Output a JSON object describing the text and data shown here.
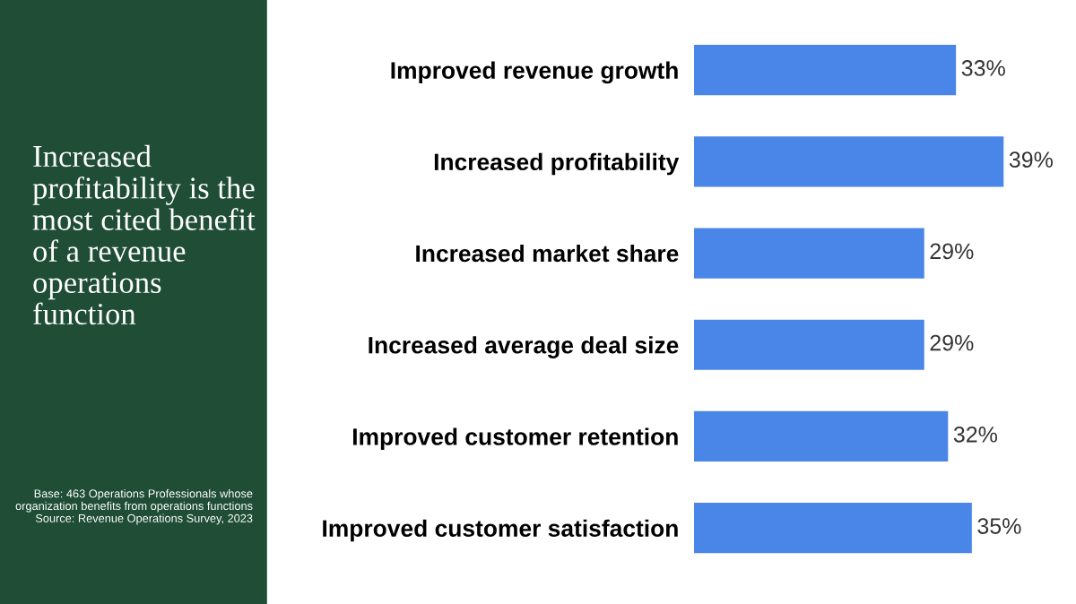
{
  "chart_data": {
    "type": "bar",
    "orientation": "horizontal",
    "title": "Increased\nprofitability is the\nmost cited benefit\nof a revenue\noperations\nfunction",
    "categories": [
      "Improved revenue growth",
      "Increased profitability",
      "Increased market share",
      "Increased average deal size",
      "Improved customer retention",
      "Improved customer satisfaction"
    ],
    "values": [
      33,
      39,
      29,
      29,
      32,
      35
    ],
    "color": "#4a86e8",
    "value_labels": [
      "33%",
      "39%",
      "29%",
      "29%",
      "32%",
      "35%"
    ],
    "annotations": [
      "Base: 463 Operations Professionals whose organization benefits from operations functions\nSource: Revenue Operations Survey, 2023"
    ],
    "grid": false,
    "legend": false
  }
}
